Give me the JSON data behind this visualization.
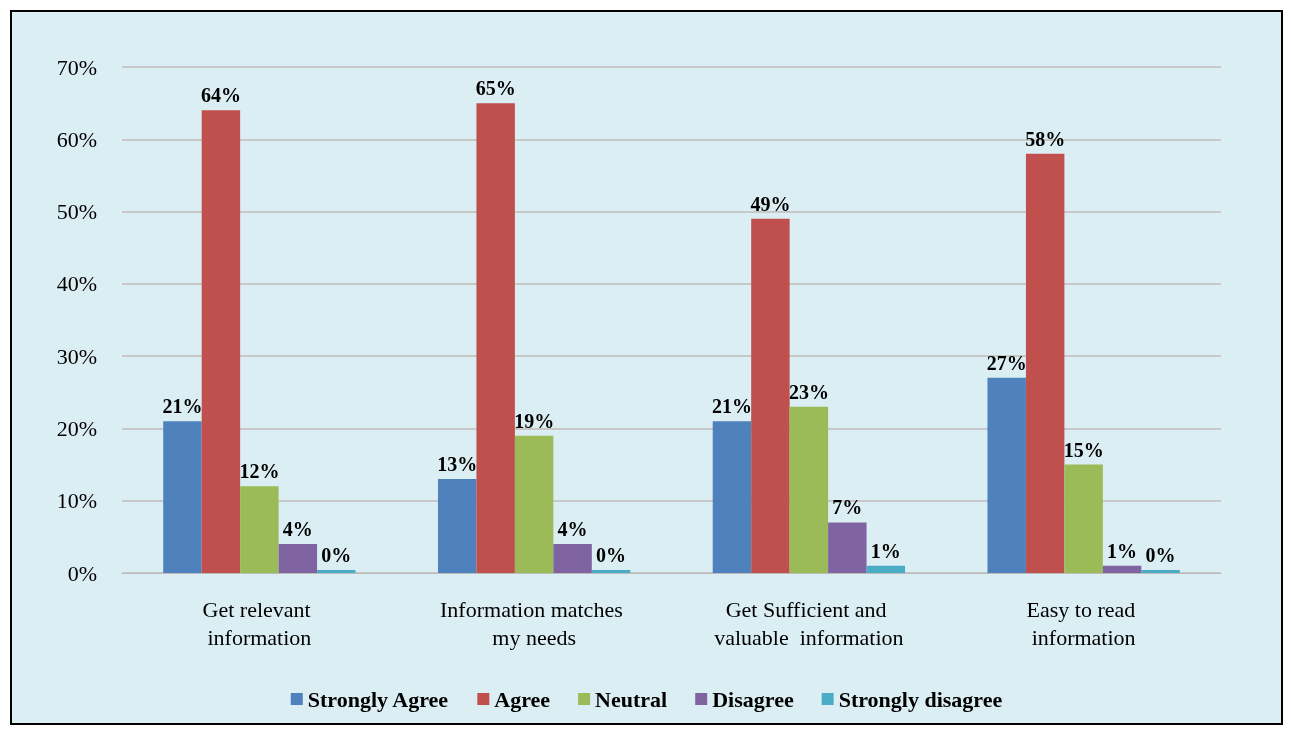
{
  "chart_data": {
    "type": "bar",
    "categories": [
      "Get relevant information",
      "Information matches my needs",
      "Get Sufficient and valuable  information",
      "Easy to read information"
    ],
    "series": [
      {
        "name": "Strongly Agree",
        "color": "#4f81bd",
        "values": [
          21,
          13,
          21,
          27
        ],
        "value_labels": [
          "21%",
          "13%",
          "21%",
          "27%"
        ]
      },
      {
        "name": "Agree",
        "color": "#c0504d",
        "values": [
          64,
          65,
          49,
          58
        ],
        "value_labels": [
          "64%",
          "65%",
          "49%",
          "58%"
        ]
      },
      {
        "name": "Neutral",
        "color": "#9bbb59",
        "values": [
          12,
          19,
          23,
          15
        ],
        "value_labels": [
          "12%",
          "19%",
          "23%",
          "15%"
        ]
      },
      {
        "name": "Disagree",
        "color": "#8064a2",
        "values": [
          4,
          4,
          7,
          1
        ],
        "value_labels": [
          "4%",
          "4%",
          "7%",
          "1%"
        ]
      },
      {
        "name": "Strongly disagree",
        "color": "#4bacc6",
        "values": [
          0,
          0,
          1,
          0
        ],
        "value_labels": [
          "0%",
          "0%",
          "1%",
          "0%"
        ]
      }
    ],
    "ylim": [
      0,
      70
    ],
    "yticks": [
      {
        "value": 0,
        "label": "0%"
      },
      {
        "value": 10,
        "label": "10%"
      },
      {
        "value": 20,
        "label": "20%"
      },
      {
        "value": 30,
        "label": "30%"
      },
      {
        "value": 40,
        "label": "40%"
      },
      {
        "value": 50,
        "label": "50%"
      },
      {
        "value": 60,
        "label": "60%"
      },
      {
        "value": 70,
        "label": "70%"
      }
    ],
    "grid": "y",
    "legend": "bottom"
  }
}
